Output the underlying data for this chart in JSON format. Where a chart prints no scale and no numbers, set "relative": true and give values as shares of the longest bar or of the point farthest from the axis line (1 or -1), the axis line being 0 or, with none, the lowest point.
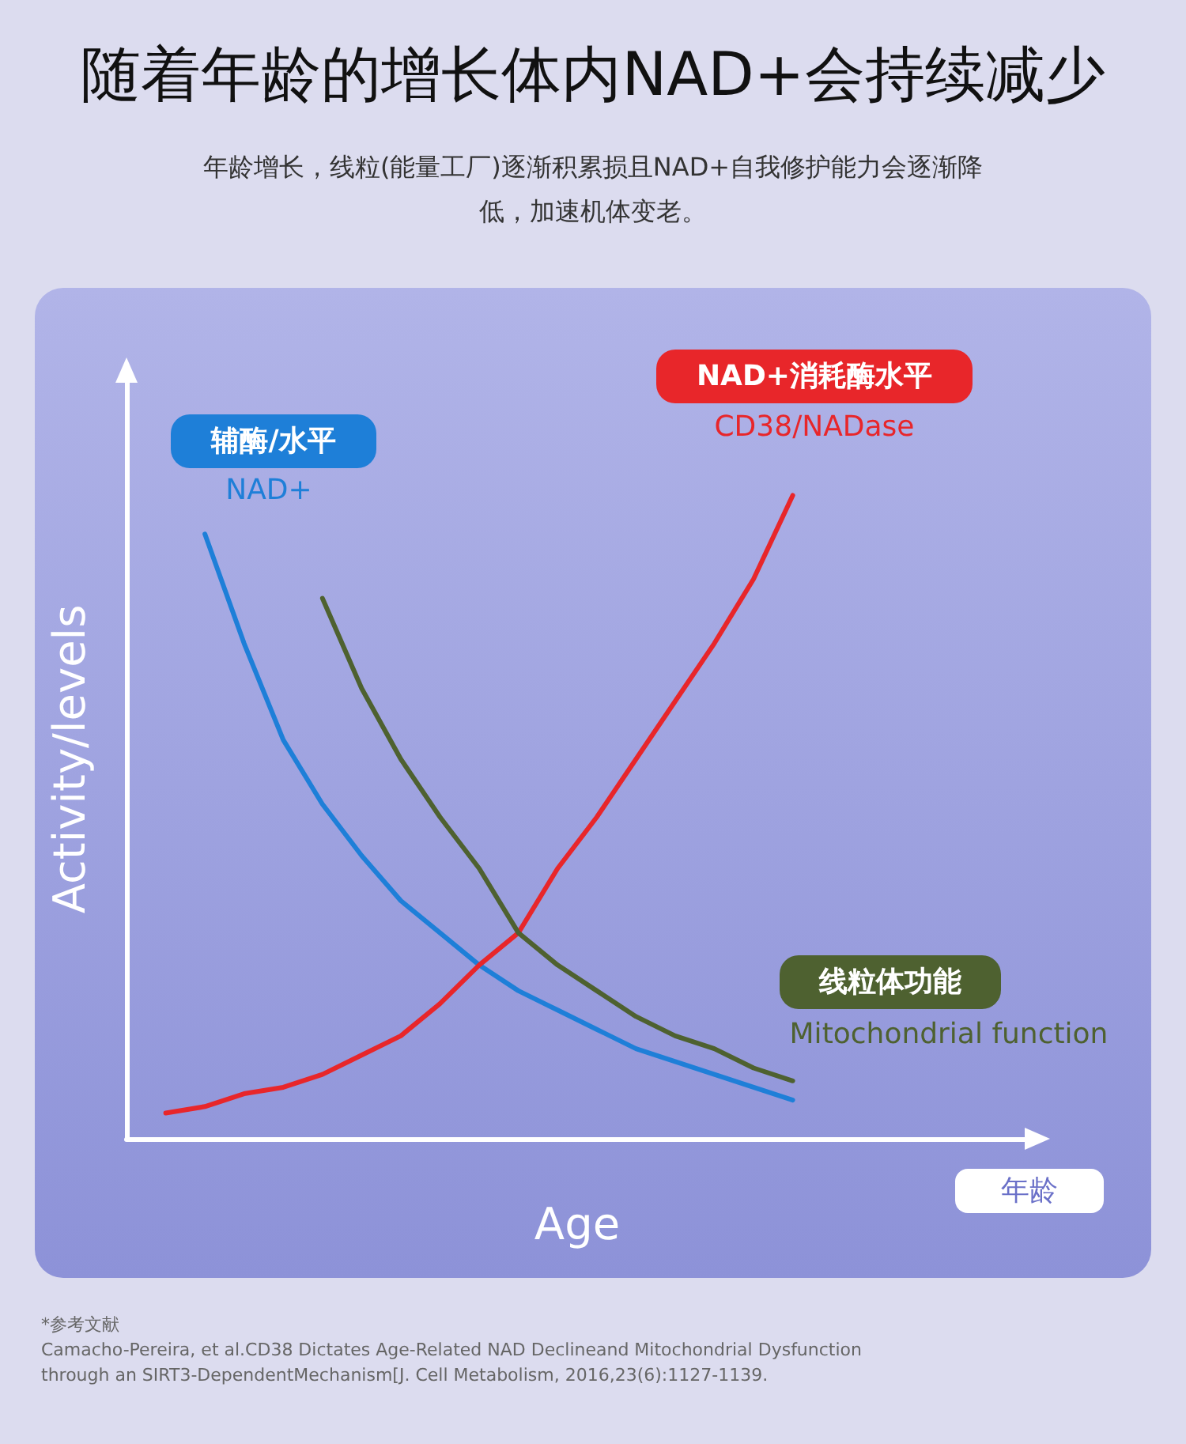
{
  "chart_data": {
    "type": "line",
    "title": "随着年龄的增长体内NAD+会持续减少",
    "subtitle": "年龄增长，线粒(能量工厂)逐渐积累损且NAD+自我修护能力会逐渐降低，加速机体变老。",
    "xlabel": "Age",
    "ylabel": "Activity/levels",
    "relative": true,
    "grid": false,
    "legend": false,
    "marker": "none",
    "line_style": "solid",
    "categories": [
      null,
      null,
      null,
      null,
      null,
      null,
      null,
      null,
      null,
      null,
      null,
      null,
      null,
      null,
      null,
      null,
      null,
      null,
      null,
      null,
      null,
      null,
      null,
      null
    ],
    "series": [
      {
        "name": "NAD+",
        "color": "#1e7fd8",
        "values": [
          null,
          null,
          0.94,
          0.77,
          0.62,
          0.52,
          0.44,
          0.37,
          0.32,
          0.27,
          0.23,
          0.2,
          0.17,
          0.14,
          0.12,
          0.1,
          0.08,
          0.06,
          null,
          null,
          null,
          null,
          null,
          null
        ]
      },
      {
        "name": "CD38/NADase",
        "color": "#e8262a",
        "values": [
          null,
          0.04,
          0.05,
          0.07,
          0.08,
          0.1,
          0.13,
          0.16,
          0.21,
          0.27,
          0.32,
          0.42,
          0.5,
          0.59,
          0.68,
          0.77,
          0.87,
          1,
          null,
          null,
          null,
          null,
          null,
          null
        ]
      },
      {
        "name": "Mitochondrial function",
        "color": "#4e6130",
        "values": [
          null,
          null,
          null,
          null,
          null,
          0.84,
          0.7,
          0.59,
          0.5,
          0.42,
          0.32,
          0.27,
          0.23,
          0.19,
          0.16,
          0.14,
          0.11,
          0.09,
          null,
          null,
          null,
          null,
          null,
          null
        ]
      }
    ],
    "annotations": [
      "辅酶/水平",
      "NAD+消耗酶水平",
      "线粒体功能",
      "年龄",
      "*参考文献",
      "Camacho-Pereira, et al.CD38 Dictates Age-Related NAD Declineand Mitochondrial Dysfunction",
      "through an SIRT3-DependentMechanism[J. Cell Metabolism, 2016,23(6):1127-1139."
    ]
  }
}
